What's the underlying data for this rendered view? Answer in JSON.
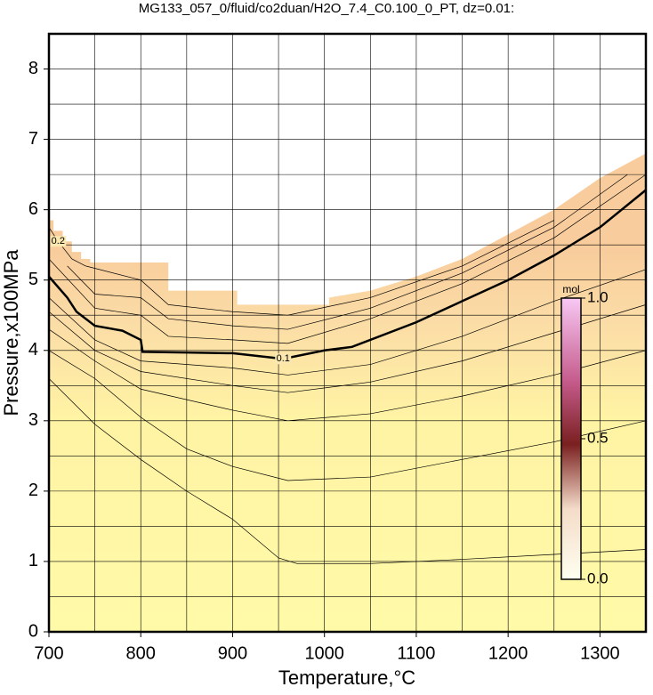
{
  "chart_data": {
    "type": "contour",
    "title": "MG133_057_0/fluid/co2duan/H2O_7.4_C0.100_0_PT, dz=0.01:",
    "xlabel": "Temperature,°C",
    "ylabel": "Pressure,x100MPa",
    "xlim": [
      700,
      1350
    ],
    "ylim": [
      0,
      8.5
    ],
    "xticks": [
      700,
      800,
      900,
      1000,
      1100,
      1200,
      1300
    ],
    "yticks": [
      0,
      1,
      2,
      3,
      4,
      5,
      6,
      7,
      8
    ],
    "xgrid": [
      750,
      800,
      850,
      900,
      950,
      1000,
      1050,
      1100,
      1150,
      1200,
      1250,
      1300
    ],
    "ygrid": [
      0.5,
      1,
      1.5,
      2,
      2.5,
      3,
      3.5,
      4,
      4.5,
      5,
      5.5,
      6,
      6.5,
      7,
      7.5,
      8
    ],
    "field": {
      "x": [
        700,
        705,
        705,
        715,
        715,
        725,
        725,
        735,
        735,
        745,
        745,
        830,
        830,
        905,
        905,
        1005,
        1005,
        1050,
        1100,
        1150,
        1200,
        1250,
        1300,
        1350
      ],
      "y": [
        5.85,
        5.85,
        5.7,
        5.7,
        5.55,
        5.55,
        5.4,
        5.4,
        5.3,
        5.3,
        5.25,
        5.25,
        4.85,
        4.85,
        4.65,
        4.65,
        4.75,
        4.85,
        5.05,
        5.3,
        5.65,
        6.0,
        6.45,
        6.8
      ]
    },
    "contours": [
      {
        "x": [
          700,
          750,
          800,
          850,
          900,
          950,
          970,
          1050,
          1150,
          1250,
          1350
        ],
        "y": [
          3.6,
          2.95,
          2.45,
          2.0,
          1.6,
          1.05,
          0.97,
          0.97,
          1.03,
          1.1,
          1.17
        ]
      },
      {
        "x": [
          700,
          750,
          800,
          850,
          900,
          960,
          1050,
          1150,
          1250,
          1350
        ],
        "y": [
          4.0,
          3.6,
          3.05,
          2.6,
          2.35,
          2.15,
          2.2,
          2.45,
          2.7,
          3.0
        ]
      },
      {
        "x": [
          700,
          750,
          800,
          900,
          960,
          1050,
          1150,
          1250,
          1350
        ],
        "y": [
          4.3,
          3.85,
          3.45,
          3.15,
          3.0,
          3.1,
          3.35,
          3.65,
          4.0
        ]
      },
      {
        "x": [
          700,
          750,
          800,
          900,
          960,
          1050,
          1150,
          1250,
          1350
        ],
        "y": [
          4.55,
          4.0,
          3.7,
          3.5,
          3.4,
          3.55,
          3.85,
          4.25,
          4.65
        ]
      },
      {
        "x": [
          700,
          750,
          800,
          900,
          960,
          1050,
          1150,
          1250,
          1350
        ],
        "y": [
          4.75,
          4.15,
          3.85,
          3.75,
          3.65,
          3.8,
          4.2,
          4.7,
          5.15
        ]
      },
      {
        "level": 0.1,
        "linewidth": 2.5,
        "x": [
          700,
          720,
          730,
          750,
          780,
          800,
          802,
          850,
          900,
          955,
          1000,
          1030,
          1100,
          1150,
          1200,
          1250,
          1300,
          1350
        ],
        "y": [
          5.05,
          4.75,
          4.55,
          4.35,
          4.28,
          4.15,
          3.98,
          3.97,
          3.96,
          3.88,
          4.0,
          4.05,
          4.4,
          4.7,
          5.0,
          5.35,
          5.75,
          6.28
        ]
      },
      {
        "x": [
          700,
          750,
          800,
          830,
          900,
          960,
          1050,
          1150,
          1250,
          1350
        ],
        "y": [
          5.3,
          4.6,
          4.5,
          4.2,
          4.15,
          4.1,
          4.45,
          4.95,
          5.6,
          6.5
        ]
      },
      {
        "x": [
          720,
          750,
          800,
          830,
          900,
          960,
          1050,
          1150,
          1250,
          1330
        ],
        "y": [
          5.2,
          4.8,
          4.75,
          4.45,
          4.35,
          4.3,
          4.6,
          5.1,
          5.75,
          6.5
        ]
      },
      {
        "x": [
          740,
          800,
          830,
          900,
          960,
          1050,
          1150,
          1250
        ],
        "y": [
          5.2,
          5.0,
          4.65,
          4.55,
          4.5,
          4.75,
          5.2,
          5.85
        ]
      },
      {
        "level": 0.2,
        "x": [
          700,
          710,
          725,
          740
        ],
        "y": [
          5.75,
          5.55,
          5.3,
          5.2
        ]
      }
    ],
    "colorbar": {
      "label": "mol",
      "lim": [
        0,
        1
      ],
      "ticks": [
        {
          "value": 0,
          "label": "0.0"
        },
        {
          "value": 0.5,
          "label": "0.5"
        },
        {
          "value": 1,
          "label": "1.0"
        }
      ]
    }
  }
}
